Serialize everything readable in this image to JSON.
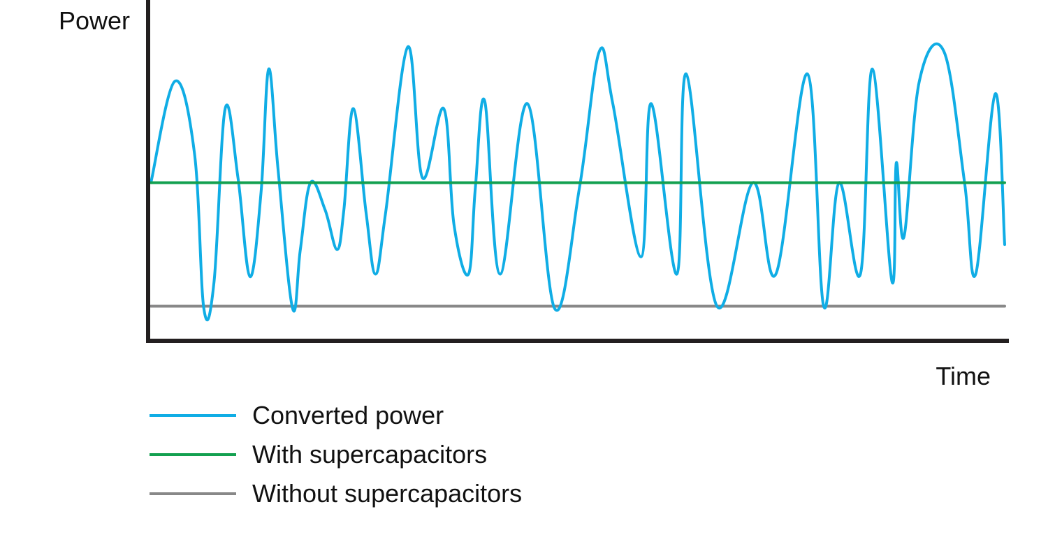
{
  "chart_data": {
    "type": "line",
    "xlabel": "Time",
    "ylabel": "Power",
    "xlim": [
      0,
      1
    ],
    "ylim": [
      0,
      1
    ],
    "grid": false,
    "legend_position": "bottom-left",
    "series": [
      {
        "name": "Converted power",
        "color": "#10ade5",
        "x": [
          0.0,
          0.028,
          0.051,
          0.062,
          0.074,
          0.087,
          0.102,
          0.116,
          0.129,
          0.138,
          0.149,
          0.166,
          0.175,
          0.187,
          0.204,
          0.218,
          0.226,
          0.237,
          0.252,
          0.263,
          0.275,
          0.301,
          0.318,
          0.343,
          0.355,
          0.372,
          0.38,
          0.391,
          0.409,
          0.441,
          0.473,
          0.502,
          0.525,
          0.541,
          0.574,
          0.586,
          0.616,
          0.627,
          0.663,
          0.705,
          0.732,
          0.769,
          0.788,
          0.806,
          0.831,
          0.845,
          0.868,
          0.873,
          0.882,
          0.9,
          0.929,
          0.953,
          0.966,
          0.989,
          1.0
        ],
        "values": [
          0.62,
          1.03,
          0.74,
          0.11,
          0.22,
          0.92,
          0.64,
          0.24,
          0.58,
          1.08,
          0.67,
          0.11,
          0.35,
          0.62,
          0.51,
          0.35,
          0.51,
          0.92,
          0.5,
          0.25,
          0.5,
          1.17,
          0.64,
          0.92,
          0.45,
          0.25,
          0.6,
          0.95,
          0.25,
          0.94,
          0.11,
          0.6,
          1.15,
          0.94,
          0.32,
          0.94,
          0.25,
          1.06,
          0.12,
          0.62,
          0.25,
          1.06,
          0.12,
          0.62,
          0.25,
          1.08,
          0.22,
          0.7,
          0.4,
          1.03,
          1.15,
          0.62,
          0.25,
          0.98,
          0.37
        ]
      },
      {
        "name": "With supercapacitors",
        "color": "#13a050",
        "x": [
          0,
          1
        ],
        "values": [
          0.62,
          0.62
        ]
      },
      {
        "name": "Without supercapacitors",
        "color": "#888888",
        "x": [
          0,
          1
        ],
        "values": [
          0.12,
          0.12
        ]
      }
    ]
  }
}
